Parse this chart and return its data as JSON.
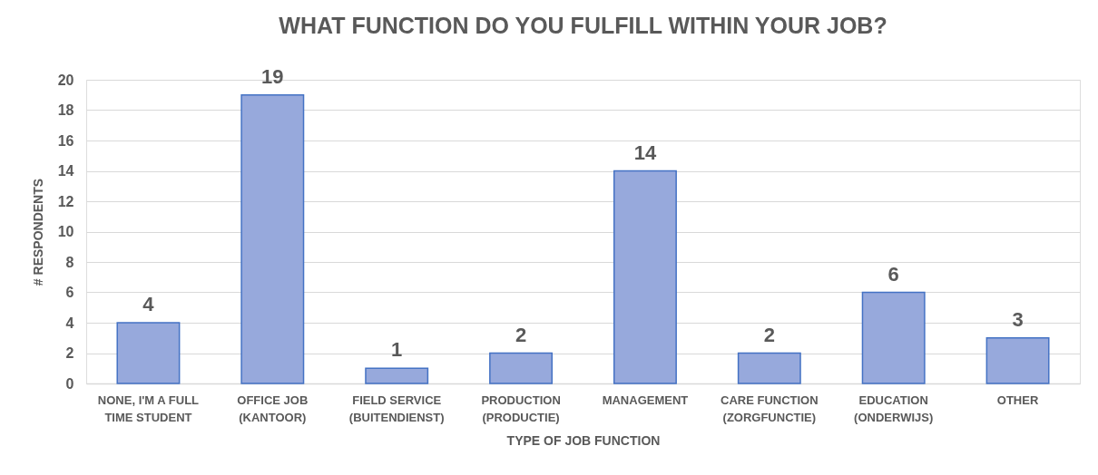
{
  "chart_data": {
    "type": "bar",
    "title": "WHAT FUNCTION DO YOU FULFILL WITHIN YOUR JOB?",
    "xlabel": "TYPE OF JOB FUNCTION",
    "ylabel": "# RESPONDENTS",
    "categories": [
      "NONE, I'M A FULL TIME STUDENT",
      "OFFICE JOB (KANTOOR)",
      "FIELD SERVICE (BUITENDIENST)",
      "PRODUCTION (PRODUCTIE)",
      "MANAGEMENT",
      "CARE FUNCTION (ZORGFUNCTIE)",
      "EDUCATION (ONDERWIJS)",
      "OTHER"
    ],
    "values": [
      4,
      19,
      1,
      2,
      14,
      2,
      6,
      3
    ],
    "color": "#97a9dc",
    "ylim": [
      0,
      20
    ],
    "yticks": [
      0,
      2,
      4,
      6,
      8,
      10,
      12,
      14,
      16,
      18,
      20
    ],
    "grid": "y",
    "data_labels": true
  }
}
